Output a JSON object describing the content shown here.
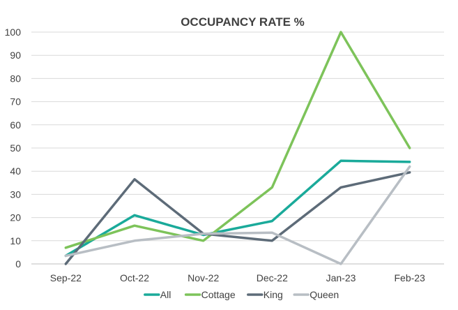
{
  "chart_data": {
    "type": "line",
    "title": "OCCUPANCY RATE %",
    "xlabel": "",
    "ylabel": "",
    "categories": [
      "Sep-22",
      "Oct-22",
      "Nov-22",
      "Dec-22",
      "Jan-23",
      "Feb-23"
    ],
    "ylim": [
      0,
      100
    ],
    "yticks": [
      "0",
      "10",
      "20",
      "30",
      "40",
      "50",
      "60",
      "70",
      "80",
      "90",
      "100"
    ],
    "grid": true,
    "legend_position": "bottom",
    "series": [
      {
        "name": "All",
        "color": "#1aaa9a",
        "values": [
          3.5,
          21,
          12.5,
          18.5,
          44.5,
          44
        ]
      },
      {
        "name": "Cottage",
        "color": "#7dc35a",
        "values": [
          7,
          16.5,
          10,
          33,
          100,
          50
        ]
      },
      {
        "name": "King",
        "color": "#5d6b78",
        "values": [
          0,
          36.5,
          13,
          10,
          33,
          39.5
        ]
      },
      {
        "name": "Queen",
        "color": "#b8bec4",
        "values": [
          3.5,
          10,
          13,
          13.5,
          0,
          42
        ]
      }
    ]
  }
}
